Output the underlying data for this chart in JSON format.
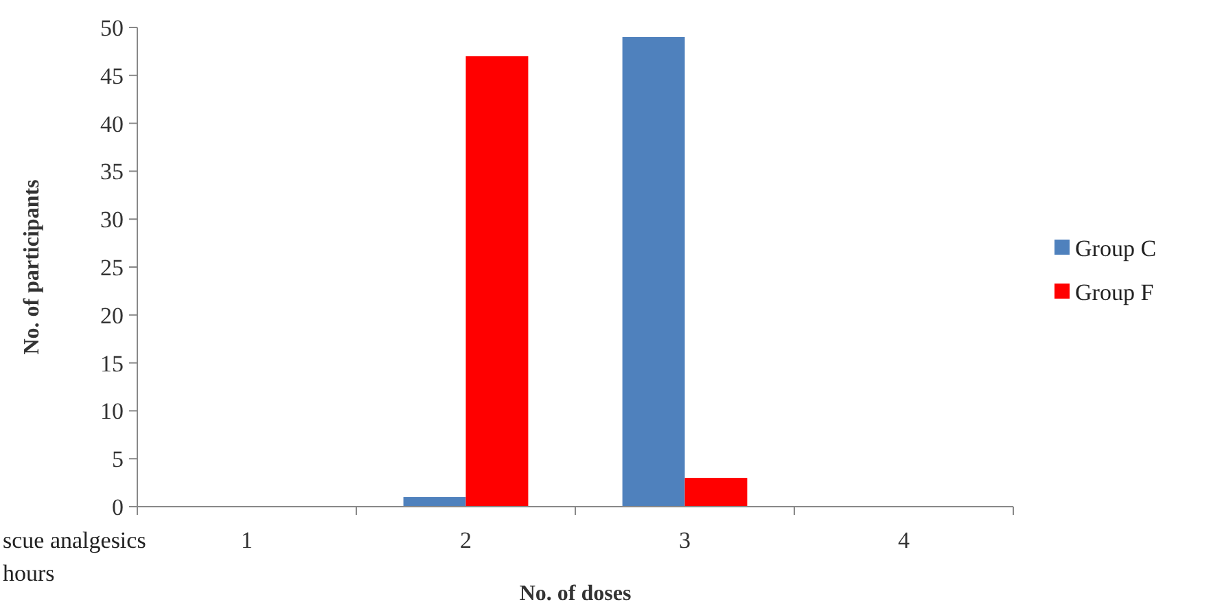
{
  "chart_data": {
    "type": "bar",
    "xlabel": "No. of  doses",
    "ylabel": "No. of participants",
    "categories": [
      "1",
      "2",
      "3",
      "4"
    ],
    "series": [
      {
        "name": "Group C",
        "color": "#4f81bd",
        "values": [
          0,
          1,
          49,
          0
        ]
      },
      {
        "name": "Group F",
        "color": "#ff0000",
        "values": [
          0,
          47,
          3,
          0
        ]
      }
    ],
    "ylim": [
      0,
      50
    ],
    "yticks": [
      0,
      5,
      10,
      15,
      20,
      25,
      30,
      35,
      40,
      45,
      50
    ],
    "grid": false,
    "legend": "right",
    "annotations": [
      "scue analgesics",
      "hours"
    ]
  }
}
